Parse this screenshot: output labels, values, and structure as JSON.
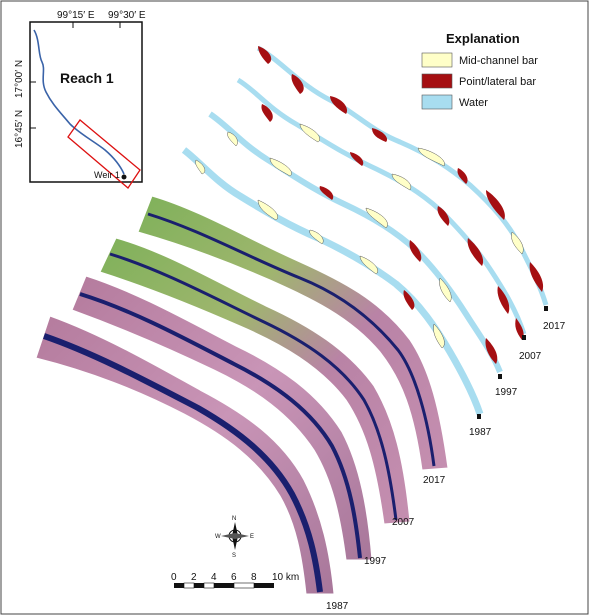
{
  "inset": {
    "title": "Reach 1",
    "lon_labels": [
      "99°15′ E",
      "99°30′ E"
    ],
    "lat_labels": [
      "17°00′ N",
      "16°45′ N"
    ],
    "weir_label": "Weir 1"
  },
  "legend": {
    "title": "Explanation",
    "items": [
      {
        "label": "Mid-channel bar",
        "color": "#FFFFC8"
      },
      {
        "label": "Point/lateral bar",
        "color": "#A50F12"
      },
      {
        "label": "Water",
        "color": "#A8DDF0"
      }
    ]
  },
  "years": [
    "1987",
    "1997",
    "2007",
    "2017"
  ],
  "scale": {
    "ticks": [
      "0",
      "2",
      "4",
      "6",
      "8",
      "10 km"
    ]
  },
  "north_arrow": {
    "n": "N",
    "s": "S",
    "e": "E",
    "w": "W"
  },
  "colors": {
    "water": "#A8DDF0",
    "mid_bar": "#FFFFC8",
    "point_bar": "#A50F12",
    "river_dark": "#1A1F6E",
    "veg_green": "#6EA84E",
    "veg_pink": "#B97AA0"
  }
}
